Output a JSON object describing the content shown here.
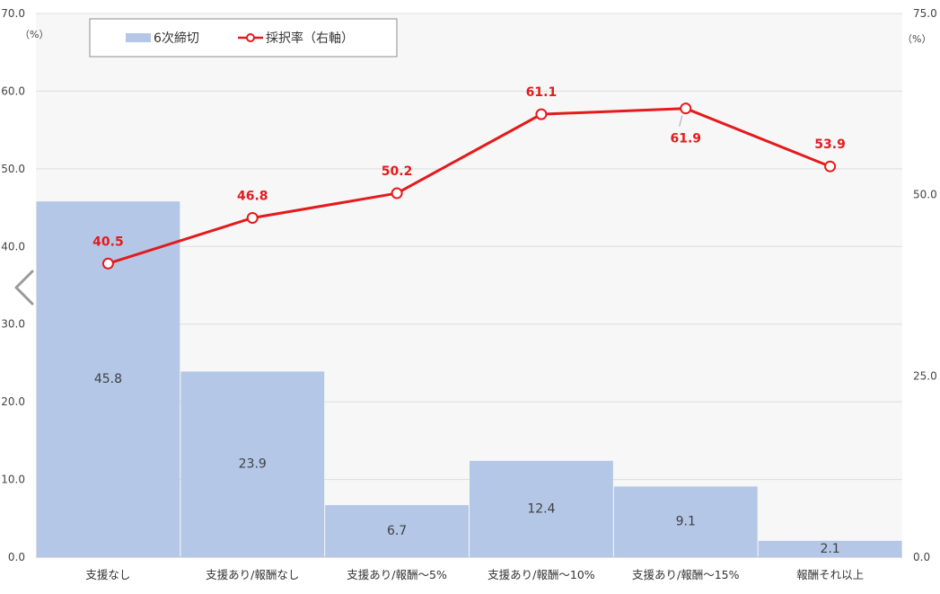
{
  "chart_data": {
    "type": "bar",
    "categories": [
      "支援なし",
      "支援あり/報酬なし",
      "支援あり/報酬～5%",
      "支援あり/報酬～10%",
      "支援あり/報酬～15%",
      "報酬それ以上"
    ],
    "series": [
      {
        "name": "6次締切",
        "type": "bar",
        "axis": "left",
        "values": [
          45.8,
          23.9,
          6.7,
          12.4,
          9.1,
          2.1
        ],
        "color": "#b4c7e7"
      },
      {
        "name": "採択率（右軸）",
        "type": "line",
        "axis": "right",
        "values": [
          40.5,
          46.8,
          50.2,
          61.1,
          61.9,
          53.9
        ],
        "color": "#e41a1c"
      }
    ],
    "y_left": {
      "ylim": [
        0,
        70
      ],
      "ticks": [
        "0.0",
        "10.0",
        "20.0",
        "30.0",
        "40.0",
        "50.0",
        "60.0",
        "70.0"
      ],
      "unit": "（%）"
    },
    "y_right": {
      "ylim": [
        0,
        75
      ],
      "ticks": [
        "0.0",
        "25.0",
        "50.0",
        "75.0"
      ],
      "unit": "（%）"
    },
    "grid": true,
    "legend": "top-left",
    "plot_background": "#f7f7f7",
    "gridline_color": "#dddddd"
  },
  "legend": {
    "bar_label": "6次締切",
    "line_label": "採択率（右軸）"
  },
  "nav": {
    "prev_icon": "chevron-left-icon"
  }
}
